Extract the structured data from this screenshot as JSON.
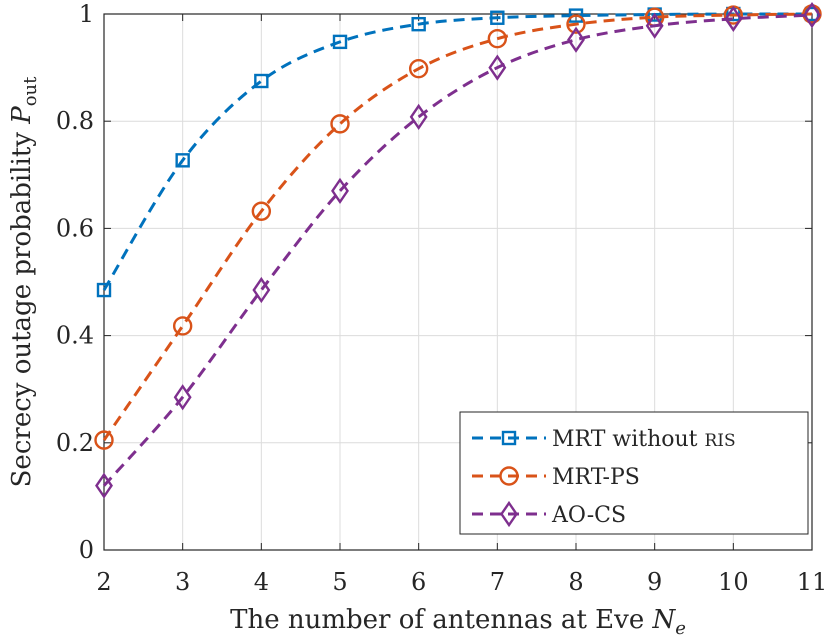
{
  "chart_data": {
    "type": "line",
    "title": "",
    "xlabel": "The number of antennas at Eve N_e",
    "xlabel_main": "The number of antennas at Eve ",
    "xlabel_var": "N",
    "xlabel_sub": "e",
    "ylabel": "Secrecy outage probability P_out",
    "ylabel_main": "Secrecy outage probability ",
    "ylabel_var": "P",
    "ylabel_sub": "out",
    "x": [
      2,
      3,
      4,
      5,
      6,
      7,
      8,
      9,
      10,
      11
    ],
    "xlim": [
      2,
      11
    ],
    "ylim": [
      0,
      1
    ],
    "xticks": [
      "2",
      "3",
      "4",
      "5",
      "6",
      "7",
      "8",
      "9",
      "10",
      "11"
    ],
    "yticks": [
      "0",
      "0.2",
      "0.4",
      "0.6",
      "0.8",
      "1"
    ],
    "grid": true,
    "legend_position": "bottom-right",
    "series": [
      {
        "name": "MRT without RIS",
        "name_main": "MRT without ",
        "name_small": "RIS",
        "color": "#0072BD",
        "marker": "square",
        "values": [
          0.485,
          0.727,
          0.875,
          0.948,
          0.981,
          0.993,
          0.997,
          0.999,
          1.0,
          1.0
        ]
      },
      {
        "name": "MRT-PS",
        "color": "#D95319",
        "marker": "circle",
        "values": [
          0.205,
          0.418,
          0.632,
          0.795,
          0.898,
          0.954,
          0.981,
          0.994,
          0.998,
          1.0
        ]
      },
      {
        "name": "AO-CS",
        "color": "#7E2F8E",
        "marker": "diamond",
        "values": [
          0.12,
          0.285,
          0.485,
          0.67,
          0.808,
          0.9,
          0.952,
          0.978,
          0.991,
          0.998
        ]
      }
    ]
  }
}
